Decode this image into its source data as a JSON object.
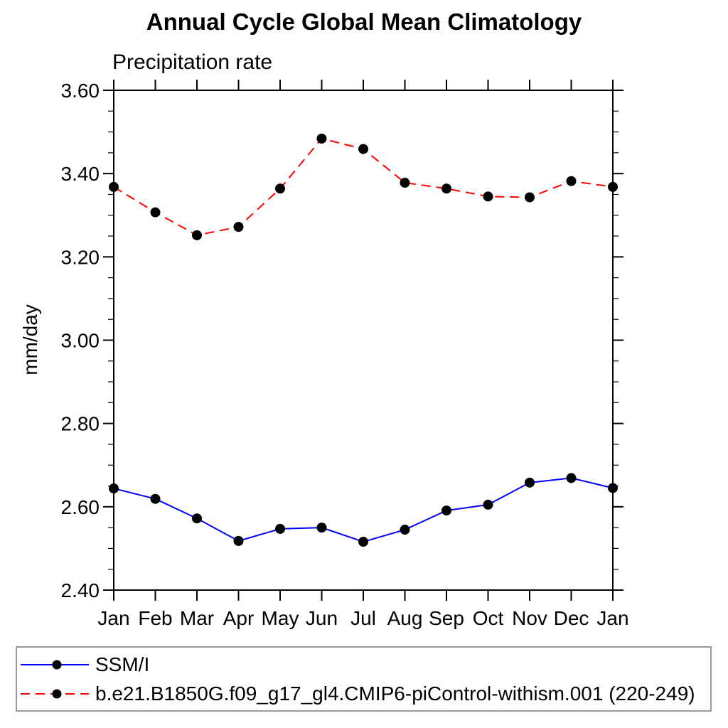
{
  "chart_data": {
    "type": "line",
    "title": "Annual Cycle Global Mean Climatology",
    "subtitle": "Precipitation rate",
    "ylabel": "mm/day",
    "xlabel": "",
    "categories": [
      "Jan",
      "Feb",
      "Mar",
      "Apr",
      "May",
      "Jun",
      "Jul",
      "Aug",
      "Sep",
      "Oct",
      "Nov",
      "Dec",
      "Jan"
    ],
    "ylim": [
      2.4,
      3.6
    ],
    "ytick_step": 0.2,
    "yminor_step": 0.05,
    "ytick_labels": [
      "2.40",
      "2.60",
      "2.80",
      "3.00",
      "3.20",
      "3.40",
      "3.60"
    ],
    "grid": false,
    "legend_position": "bottom-left-box",
    "series": [
      {
        "name": "SSM/I",
        "color": "#0000ff",
        "line_style": "solid",
        "marker": "filled-circle",
        "marker_color": "#000000",
        "values": [
          2.644,
          2.619,
          2.572,
          2.518,
          2.547,
          2.55,
          2.516,
          2.545,
          2.591,
          2.605,
          2.658,
          2.669,
          2.645
        ]
      },
      {
        "name": "b.e21.B1850G.f09_g17_gl4.CMIP6-piControl-withism.001 (220-249)",
        "color": "#ff0000",
        "line_style": "dashed",
        "marker": "filled-circle",
        "marker_color": "#000000",
        "values": [
          3.368,
          3.307,
          3.252,
          3.272,
          3.364,
          3.484,
          3.459,
          3.378,
          3.364,
          3.345,
          3.343,
          3.382,
          3.368
        ]
      }
    ]
  },
  "colors": {
    "axis": "#000000",
    "text": "#000000",
    "legend_border": "#9a9a9a",
    "ssmi_line": "#0000ff",
    "model_line": "#ff0000",
    "marker": "#000000",
    "background": "#ffffff"
  }
}
